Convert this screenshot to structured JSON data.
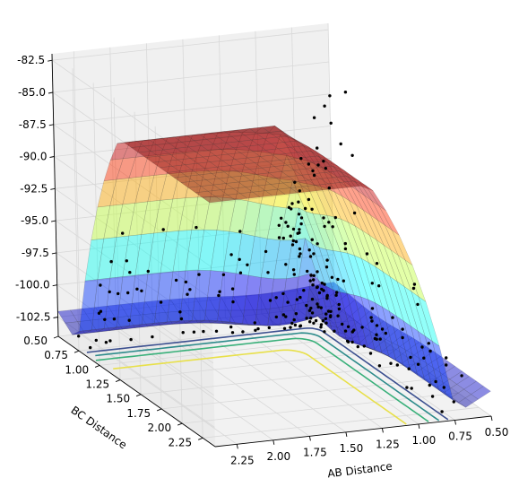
{
  "chart_data": {
    "type": "surface3d",
    "title": "",
    "xlabel": "AB Distance",
    "ylabel": "BC Distance",
    "zlabel": "",
    "x_ticks": [
      "0.50",
      "0.75",
      "1.00",
      "1.25",
      "1.50",
      "1.75",
      "2.00",
      "2.25"
    ],
    "y_ticks": [
      "0.50",
      "0.75",
      "1.00",
      "1.25",
      "1.50",
      "1.75",
      "2.00",
      "2.25"
    ],
    "z_ticks": [
      "-82.5",
      "-85.0",
      "-87.5",
      "-90.0",
      "-92.5",
      "-95.0",
      "-97.5",
      "-100.0",
      "-102.5"
    ],
    "xlim": [
      0.5,
      2.4
    ],
    "ylim": [
      0.5,
      2.4
    ],
    "zlim": [
      -104,
      -82
    ],
    "surface_colormap": "jet",
    "surface_clip_value": -85.0,
    "contour_colors": [
      "#3b4f8f",
      "#2d8b8b",
      "#39b07a",
      "#e8e04a"
    ],
    "scatter_color": "#000000",
    "grid": true,
    "legend": "none"
  }
}
